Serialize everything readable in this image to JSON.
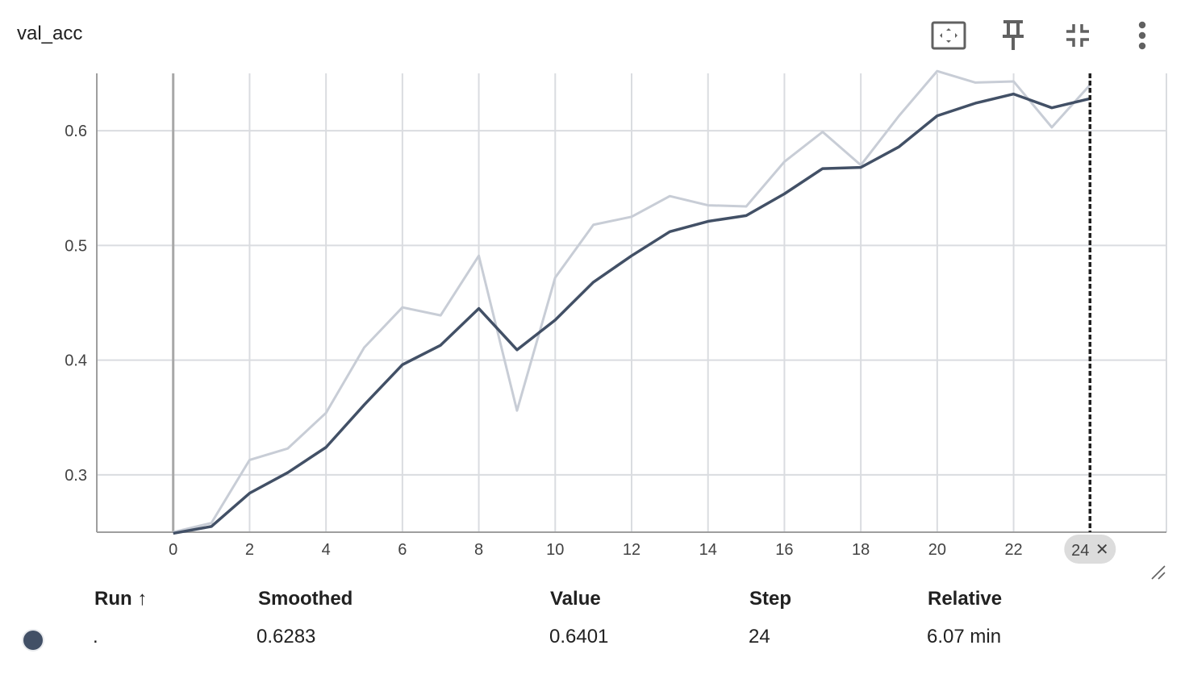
{
  "card": {
    "title": "val_acc",
    "tools": [
      {
        "name": "fit-domain-icon",
        "label": "Fit domain to data"
      },
      {
        "name": "pin-icon",
        "label": "Pin card"
      },
      {
        "name": "collapse-icon",
        "label": "Collapse"
      },
      {
        "name": "more-vert-icon",
        "label": "More"
      }
    ]
  },
  "chart_data": {
    "type": "line",
    "title": "val_acc",
    "xlabel": "",
    "ylabel": "",
    "xlim": [
      -2,
      26
    ],
    "ylim": [
      0.25,
      0.65
    ],
    "x_ticks": [
      0,
      2,
      4,
      6,
      8,
      10,
      12,
      14,
      16,
      18,
      20,
      22
    ],
    "y_ticks": [
      0.3,
      0.4,
      0.5,
      0.6
    ],
    "y_tick_labels": [
      "0.3",
      "0.4",
      "0.5",
      "0.6"
    ],
    "grid": true,
    "hover_step": 24,
    "hover_step_label": "24",
    "colors": {
      "smoothed": "#425066",
      "raw": "#c8cdd6",
      "grid": "#dadce0",
      "cursor": "#212121"
    },
    "x": [
      0,
      1,
      2,
      3,
      4,
      5,
      6,
      7,
      8,
      9,
      10,
      11,
      12,
      13,
      14,
      15,
      16,
      17,
      18,
      19,
      20,
      21,
      22,
      23,
      24
    ],
    "series": [
      {
        "role": "raw",
        "values": [
          0.25,
          0.258,
          0.313,
          0.323,
          0.354,
          0.411,
          0.446,
          0.439,
          0.491,
          0.356,
          0.472,
          0.518,
          0.525,
          0.543,
          0.535,
          0.534,
          0.573,
          0.599,
          0.57,
          0.613,
          0.652,
          0.642,
          0.643,
          0.603,
          0.64
        ]
      },
      {
        "role": "smoothed",
        "values": [
          0.249,
          0.255,
          0.284,
          0.302,
          0.324,
          0.361,
          0.396,
          0.413,
          0.445,
          0.409,
          0.435,
          0.468,
          0.491,
          0.512,
          0.521,
          0.526,
          0.545,
          0.567,
          0.568,
          0.586,
          0.613,
          0.624,
          0.632,
          0.62,
          0.628
        ]
      }
    ]
  },
  "table": {
    "headers": {
      "run": "Run ↑",
      "smoothed": "Smoothed",
      "value": "Value",
      "step": "Step",
      "relative": "Relative"
    },
    "rows": [
      {
        "run": ".",
        "smoothed": "0.6283",
        "value": "0.6401",
        "step": "24",
        "relative": "6.07 min",
        "color": "#425066"
      }
    ]
  }
}
